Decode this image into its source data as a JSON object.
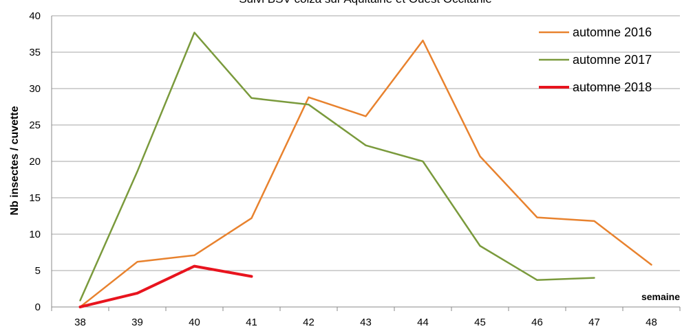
{
  "chart_data": {
    "type": "line",
    "title": "Suivi BSV colza sur Aquitaine et Ouest Occitanie",
    "xlabel": "semaine",
    "ylabel": "Nb insectes / cuvette",
    "categories": [
      "38",
      "39",
      "40",
      "41",
      "42",
      "43",
      "44",
      "45",
      "46",
      "47",
      "48"
    ],
    "ylim": [
      0,
      40
    ],
    "yticks": [
      0,
      5,
      10,
      15,
      20,
      25,
      30,
      35,
      40
    ],
    "grid": true,
    "legend_position": "top-right",
    "series": [
      {
        "name": "automne 2016",
        "color": "#e8822e",
        "values": [
          0,
          6.2,
          7.1,
          12.2,
          28.8,
          26.2,
          36.6,
          20.7,
          12.3,
          11.8,
          5.8
        ]
      },
      {
        "name": "automne 2017",
        "color": "#7a9a3c",
        "values": [
          0.9,
          18.6,
          37.7,
          28.7,
          27.8,
          22.2,
          20.0,
          8.4,
          3.7,
          4.0,
          null
        ]
      },
      {
        "name": "automne 2018",
        "color": "#e8141e",
        "values": [
          0,
          1.9,
          5.6,
          4.2,
          null,
          null,
          null,
          null,
          null,
          null,
          null
        ]
      }
    ]
  }
}
